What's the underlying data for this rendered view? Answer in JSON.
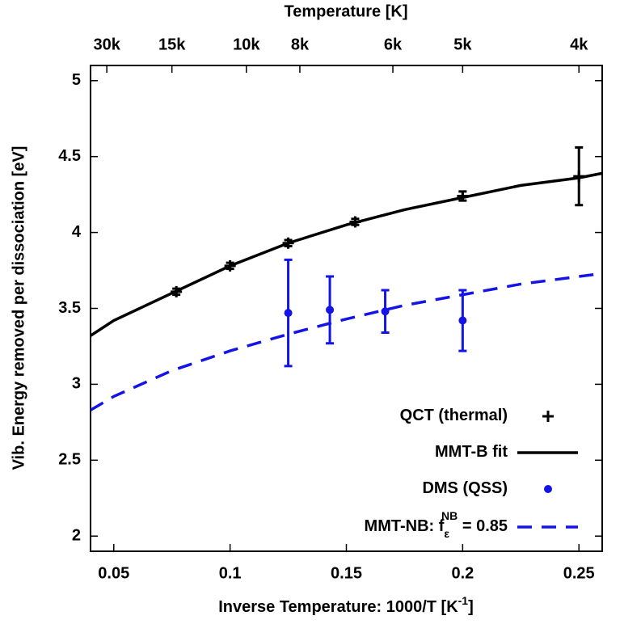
{
  "chart_data": {
    "type": "line",
    "title": "Temperature [K]",
    "xlabel_parts": [
      "Inverse Temperature: 1000/T  [K",
      "-1",
      "]"
    ],
    "ylabel": "Vib. Energy removed per dissociation [eV]",
    "xlim": [
      0.04,
      0.26
    ],
    "xticks": [
      0.05,
      0.1,
      0.15,
      0.2,
      0.25
    ],
    "ylim": [
      1.9,
      5.1
    ],
    "yticks": [
      2,
      2.5,
      3,
      3.5,
      4,
      4.5,
      5
    ],
    "x2ticks": [
      {
        "value": 0.047,
        "label": "30k"
      },
      {
        "value": 0.075,
        "label": "15k"
      },
      {
        "value": 0.107,
        "label": "10k"
      },
      {
        "value": 0.13,
        "label": "8k"
      },
      {
        "value": 0.17,
        "label": "6k"
      },
      {
        "value": 0.2,
        "label": "5k"
      },
      {
        "value": 0.25,
        "label": "4k"
      }
    ],
    "grid": false,
    "legend": "lower right",
    "series": [
      {
        "name_parts": [
          "QCT (thermal)"
        ],
        "type": "scatter",
        "marker": "plus",
        "color": "#000000",
        "x": [
          0.0769,
          0.1,
          0.125,
          0.1538,
          0.2,
          0.25
        ],
        "values": [
          3.61,
          3.78,
          3.93,
          4.07,
          4.24,
          4.37
        ],
        "errors": [
          0.02,
          0.02,
          0.02,
          0.02,
          0.03,
          0.19
        ]
      },
      {
        "name_parts": [
          "MMT-B fit"
        ],
        "type": "line",
        "dash": false,
        "color": "#000000",
        "x": [
          0.04,
          0.05,
          0.075,
          0.1,
          0.125,
          0.15,
          0.175,
          0.2,
          0.225,
          0.25,
          0.26
        ],
        "values": [
          3.32,
          3.42,
          3.6,
          3.78,
          3.93,
          4.05,
          4.15,
          4.23,
          4.31,
          4.36,
          4.39
        ]
      },
      {
        "name_parts": [
          "DMS (QSS)"
        ],
        "type": "scatter",
        "marker": "dot",
        "color": "#1414e6",
        "x": [
          0.125,
          0.1429,
          0.1667,
          0.2
        ],
        "values": [
          3.47,
          3.49,
          3.48,
          3.42
        ],
        "errors": [
          0.35,
          0.22,
          0.14,
          0.2
        ]
      },
      {
        "name_parts": [
          "MMT-NB: f",
          "ε",
          "NB",
          " = 0.85"
        ],
        "type": "line",
        "dash": true,
        "color": "#1414e6",
        "x": [
          0.04,
          0.05,
          0.075,
          0.1,
          0.125,
          0.15,
          0.175,
          0.2,
          0.225,
          0.25,
          0.26
        ],
        "values": [
          2.83,
          2.92,
          3.09,
          3.22,
          3.33,
          3.43,
          3.52,
          3.59,
          3.66,
          3.71,
          3.73
        ]
      }
    ]
  }
}
